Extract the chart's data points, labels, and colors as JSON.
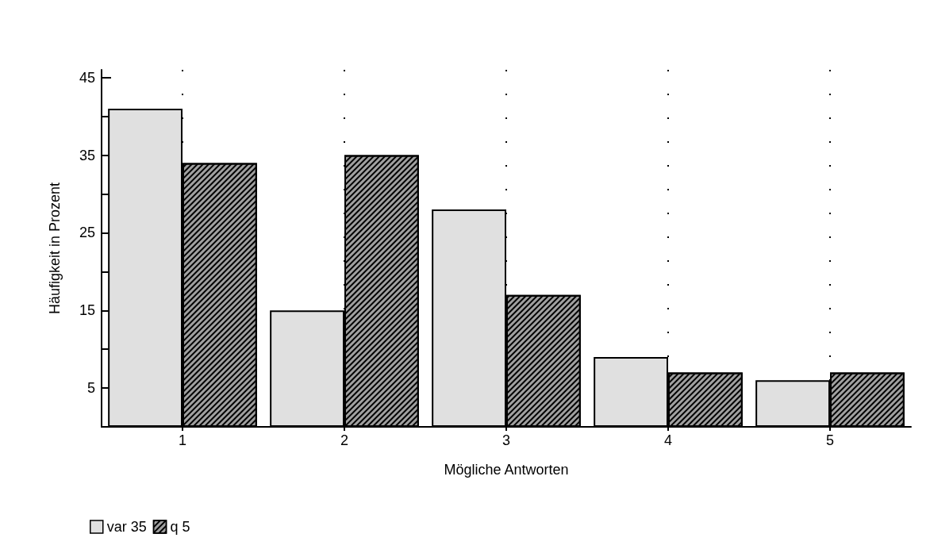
{
  "chart_data": {
    "type": "bar",
    "xlabel": "Mögliche Antworten",
    "ylabel": "Häufigkeit in Prozent",
    "categories": [
      "1",
      "2",
      "3",
      "4",
      "5"
    ],
    "series": [
      {
        "name": "var 35",
        "color": "#e0e0e0",
        "values": [
          41,
          15,
          28,
          9,
          6
        ]
      },
      {
        "name": "q 5",
        "color": "#a0a0a0",
        "values": [
          34,
          35,
          17,
          7,
          7
        ]
      }
    ],
    "ylim": [
      0,
      46
    ],
    "yticks": [
      {
        "value": 0,
        "label": null
      },
      5,
      {
        "value": 10,
        "label": null
      },
      15,
      {
        "value": 20,
        "label": null
      },
      25,
      {
        "value": 30,
        "label": null
      },
      35,
      {
        "value": 40,
        "label": null
      },
      45
    ],
    "grid": "x",
    "legend": "bottom left"
  }
}
